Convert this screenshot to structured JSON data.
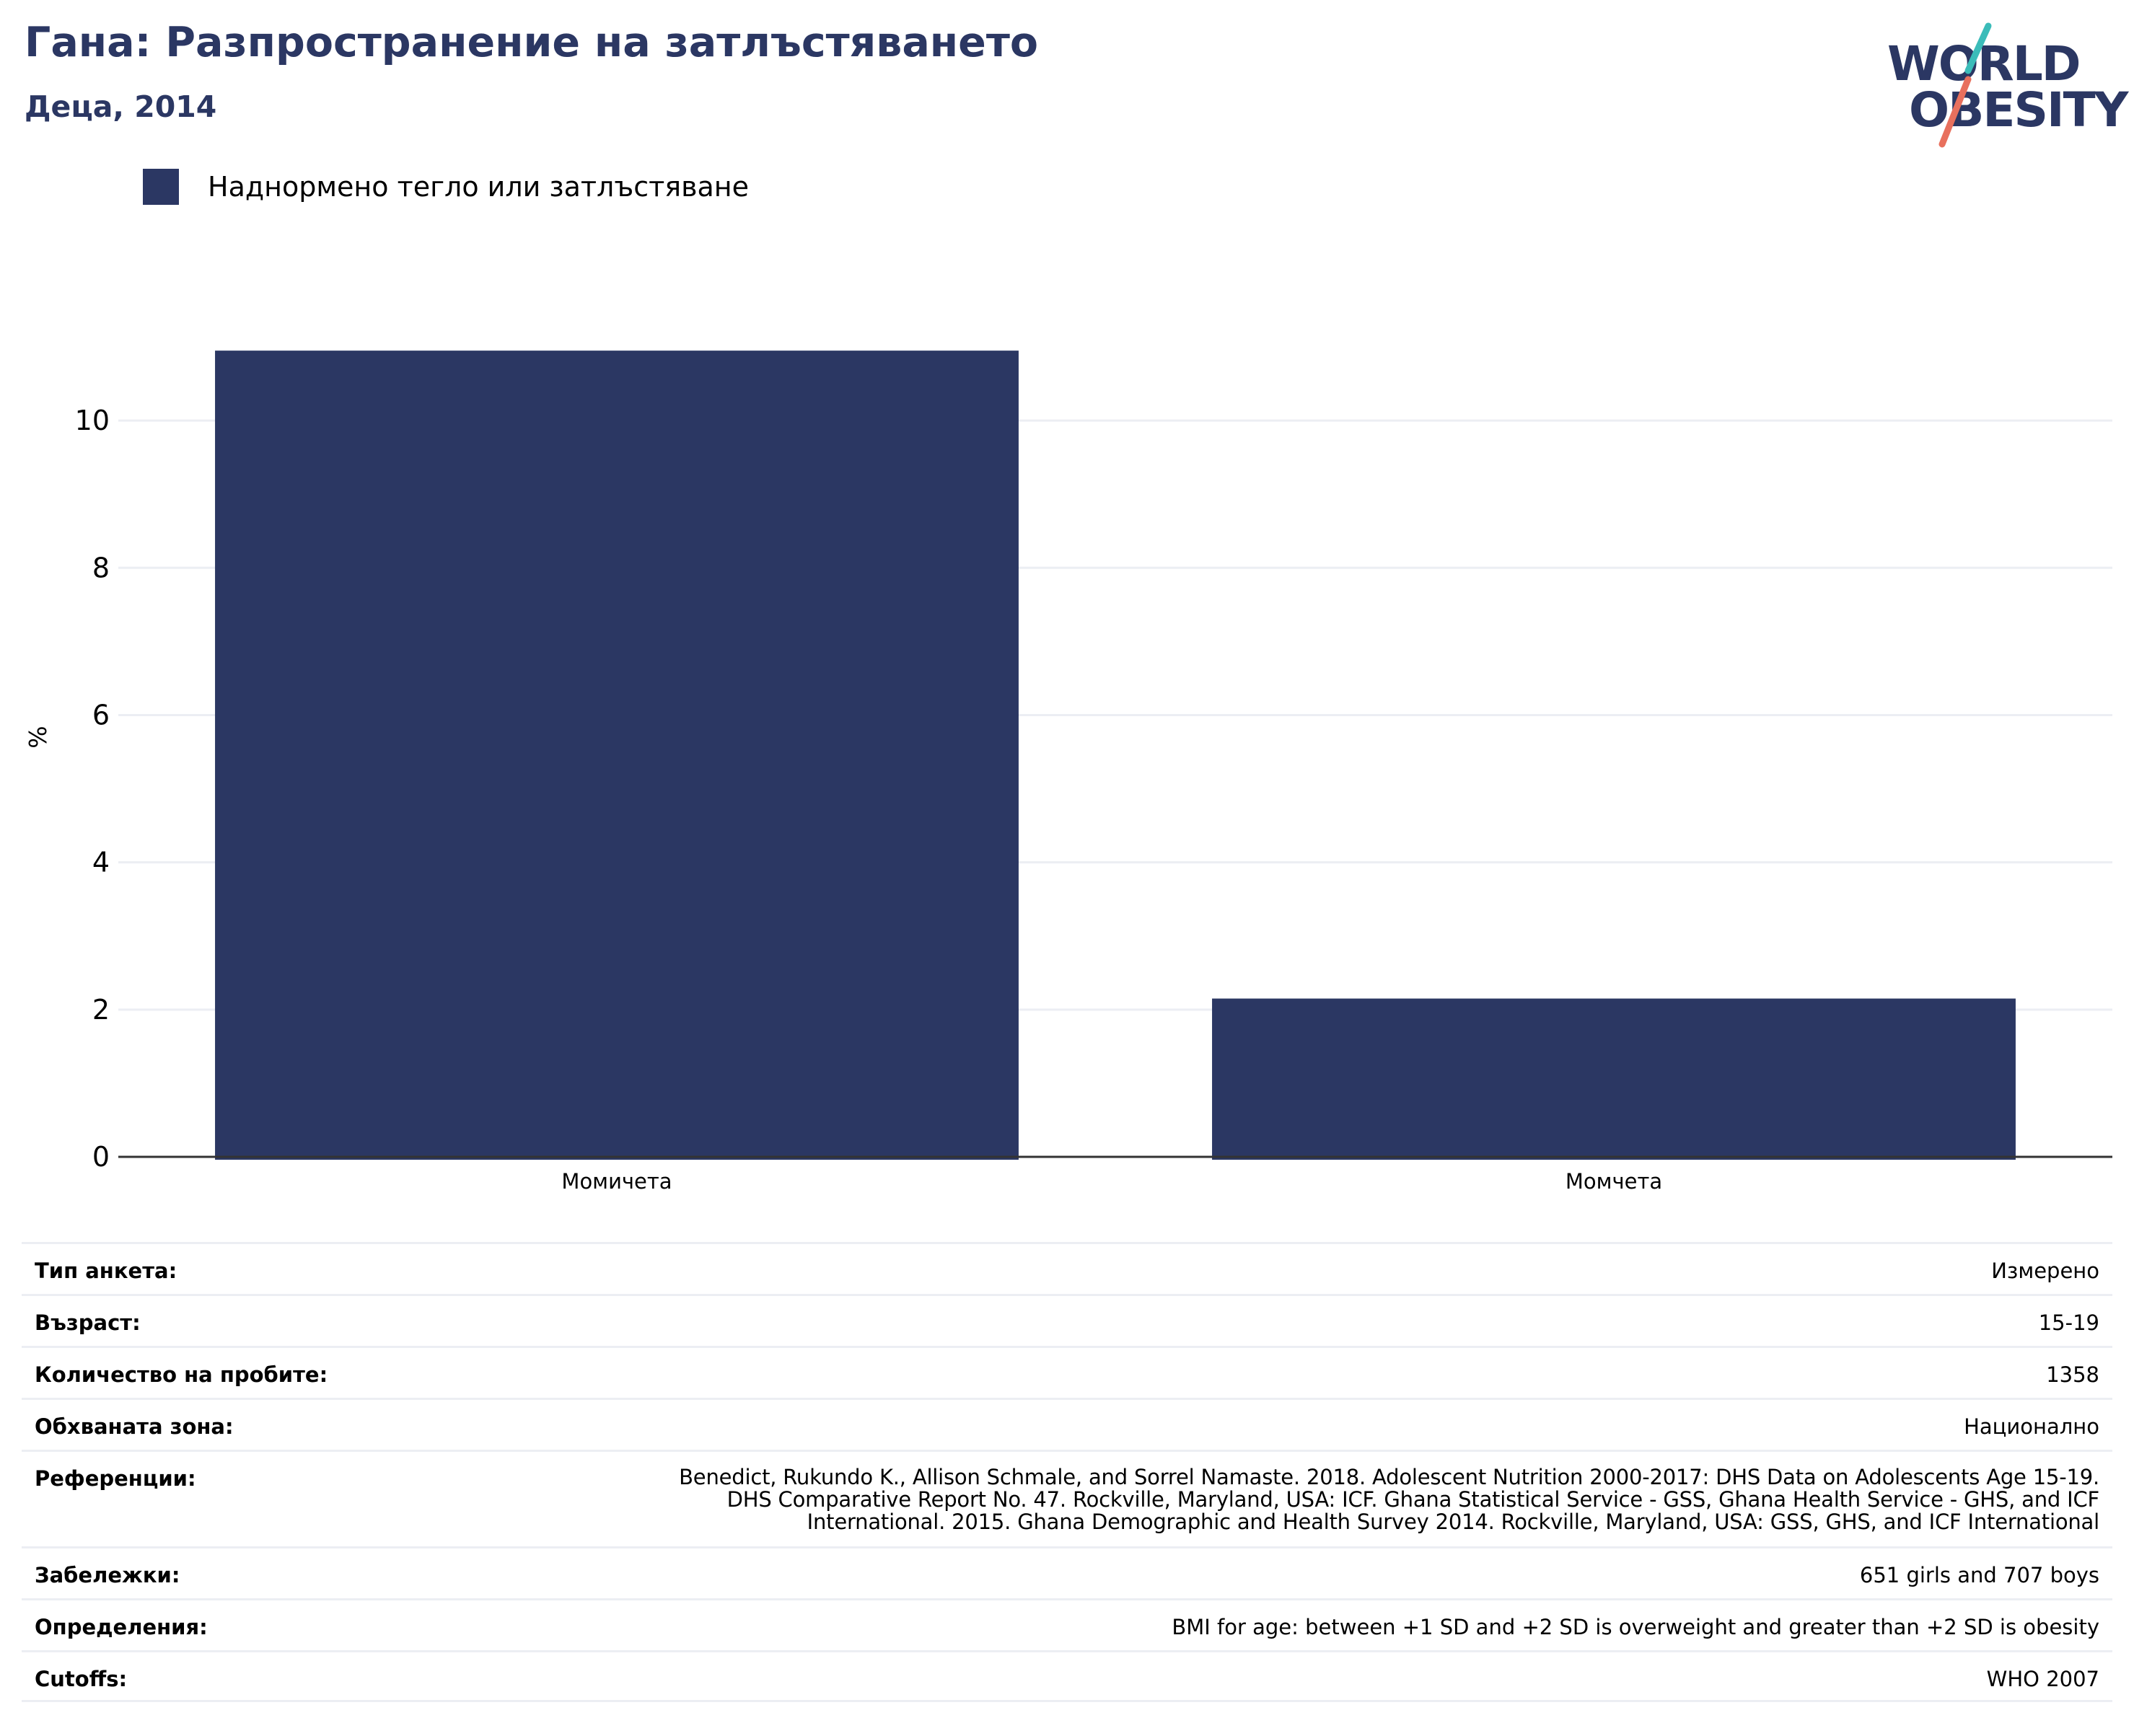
{
  "header": {
    "title": "Гана: Разпространение на затлъстяването",
    "subtitle": "Деца, 2014"
  },
  "logo": {
    "line1": "WORLD",
    "line2": "OBESITY",
    "colors": {
      "text": "#2b3763",
      "slash_top": "#3bbcb9",
      "slash_bottom": "#e8705d"
    }
  },
  "legend": {
    "items": [
      {
        "label": "Наднормено тегло или затлъстяване",
        "color": "#2b3763"
      }
    ]
  },
  "chart_data": {
    "type": "bar",
    "categories": [
      "Момичета",
      "Момчета"
    ],
    "series": [
      {
        "name": "Наднормено тегло или затлъстяване",
        "values": [
          10.95,
          2.15
        ]
      }
    ],
    "ylabel": "%",
    "xlabel": "",
    "ylim": [
      0,
      11.5
    ],
    "yticks": [
      0,
      2,
      4,
      6,
      8,
      10
    ],
    "grid": true,
    "legend_position": "top-left",
    "bar_color": "#2b3763"
  },
  "info": [
    {
      "label": "Тип анкета:",
      "value": "Измерено"
    },
    {
      "label": "Възраст:",
      "value": "15-19"
    },
    {
      "label": "Количество на пробите:",
      "value": "1358"
    },
    {
      "label": "Обхваната зона:",
      "value": "Национално"
    },
    {
      "label": "Референции:",
      "value": "Benedict, Rukundo K., Allison Schmale, and Sorrel Namaste. 2018. Adolescent Nutrition 2000-2017: DHS Data on Adolescents Age 15-19.\nDHS Comparative Report No. 47. Rockville, Maryland, USA: ICF. Ghana Statistical Service - GSS, Ghana Health Service - GHS, and ICF\nInternational. 2015. Ghana Demographic and Health Survey 2014. Rockville, Maryland, USA: GSS, GHS, and ICF International"
    },
    {
      "label": "Забележки:",
      "value": "651 girls and 707 boys"
    },
    {
      "label": "Определения:",
      "value": "BMI for age: between +1 SD and +2 SD is overweight and greater than +2 SD is obesity"
    },
    {
      "label": "Cutoffs:",
      "value": "WHO 2007"
    }
  ]
}
